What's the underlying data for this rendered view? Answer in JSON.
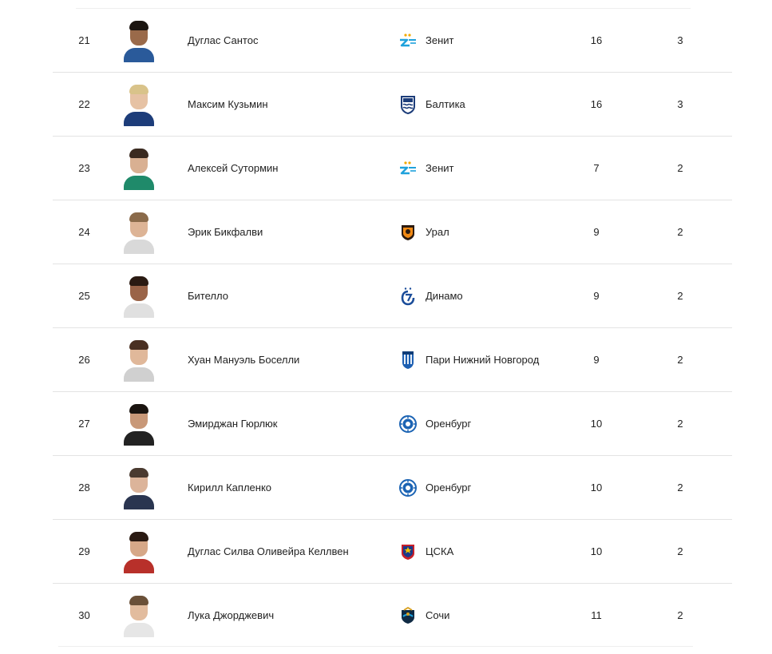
{
  "colors": {
    "row_divider": "#e3e3e3",
    "text": "#222222"
  },
  "rows": [
    {
      "rank": "21",
      "name": "Дуглас Сантос",
      "club": "Зенит",
      "club_icon": "zenit-icon",
      "games": "16",
      "goals": "3",
      "skin": "#9a6a4a",
      "hair": "#1b1510",
      "shirt": "#2a5a9a"
    },
    {
      "rank": "22",
      "name": "Максим Кузьмин",
      "club": "Балтика",
      "club_icon": "baltika-icon",
      "games": "16",
      "goals": "3",
      "skin": "#e6c2a4",
      "hair": "#d9c38a",
      "shirt": "#1d3d7a"
    },
    {
      "rank": "23",
      "name": "Алексей Сутормин",
      "club": "Зенит",
      "club_icon": "zenit-icon",
      "games": "7",
      "goals": "2",
      "skin": "#d9b092",
      "hair": "#3a2a20",
      "shirt": "#1f8a6a"
    },
    {
      "rank": "24",
      "name": "Эрик Бикфалви",
      "club": "Урал",
      "club_icon": "ural-icon",
      "games": "9",
      "goals": "2",
      "skin": "#ddb496",
      "hair": "#8a6a4a",
      "shirt": "#d9d9d9"
    },
    {
      "rank": "25",
      "name": "Бителло",
      "club": "Динамо",
      "club_icon": "dynamo-icon",
      "games": "9",
      "goals": "2",
      "skin": "#9a6448",
      "hair": "#2a1a12",
      "shirt": "#e0e0e0"
    },
    {
      "rank": "26",
      "name": "Хуан Мануэль Боселли",
      "club": "Пари Нижний Новгород",
      "club_icon": "nn-icon",
      "games": "9",
      "goals": "2",
      "skin": "#e0b89a",
      "hair": "#4a3022",
      "shirt": "#d0d0d0"
    },
    {
      "rank": "27",
      "name": "Эмирджан Гюрлюк",
      "club": "Оренбург",
      "club_icon": "orenburg-icon",
      "games": "10",
      "goals": "2",
      "skin": "#c89878",
      "hair": "#1a1410",
      "shirt": "#222222"
    },
    {
      "rank": "28",
      "name": "Кирилл Капленко",
      "club": "Оренбург",
      "club_icon": "orenburg-icon",
      "games": "10",
      "goals": "2",
      "skin": "#dcb49a",
      "hair": "#4a3a30",
      "shirt": "#2a3550"
    },
    {
      "rank": "29",
      "name": "Дуглас Силва Оливейра Келлвен",
      "club": "ЦСКА",
      "club_icon": "cska-icon",
      "games": "10",
      "goals": "2",
      "skin": "#d6a888",
      "hair": "#2a1a12",
      "shirt": "#b8302a"
    },
    {
      "rank": "30",
      "name": "Лука Джорджевич",
      "club": "Сочи",
      "club_icon": "sochi-icon",
      "games": "11",
      "goals": "2",
      "skin": "#e2bc9e",
      "hair": "#6a5038",
      "shirt": "#e6e6e6"
    }
  ]
}
